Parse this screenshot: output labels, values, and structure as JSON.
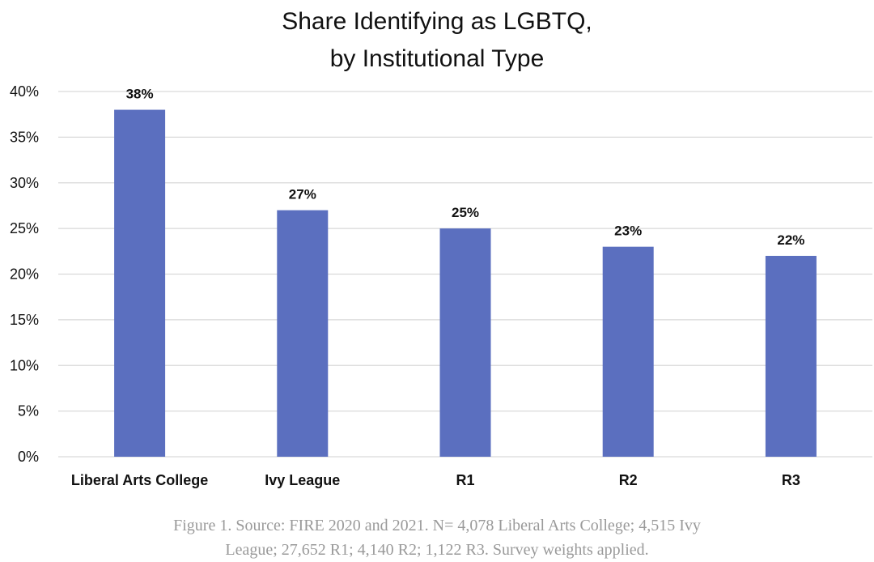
{
  "chart_data": {
    "type": "bar",
    "title_lines": [
      "Share Identifying as LGBTQ,",
      "by Institutional Type"
    ],
    "categories": [
      "Liberal Arts College",
      "Ivy League",
      "R1",
      "R2",
      "R3"
    ],
    "values": [
      38,
      27,
      25,
      23,
      22
    ],
    "data_labels": [
      "38%",
      "27%",
      "25%",
      "23%",
      "22%"
    ],
    "ylim": [
      0,
      40
    ],
    "yticks": [
      0,
      5,
      10,
      15,
      20,
      25,
      30,
      35,
      40
    ],
    "ytick_labels": [
      "0%",
      "5%",
      "10%",
      "15%",
      "20%",
      "25%",
      "30%",
      "35%",
      "40%"
    ],
    "xlabel": "",
    "ylabel": "",
    "grid": true,
    "bar_color": "#5b6fbf",
    "grid_color": "#d9d9d9"
  },
  "caption": {
    "line1": "Figure 1. Source: FIRE 2020 and 2021. N= 4,078 Liberal Arts College; 4,515 Ivy",
    "line2": "League; 27,652 R1; 4,140 R2; 1,122 R3. Survey weights applied."
  }
}
